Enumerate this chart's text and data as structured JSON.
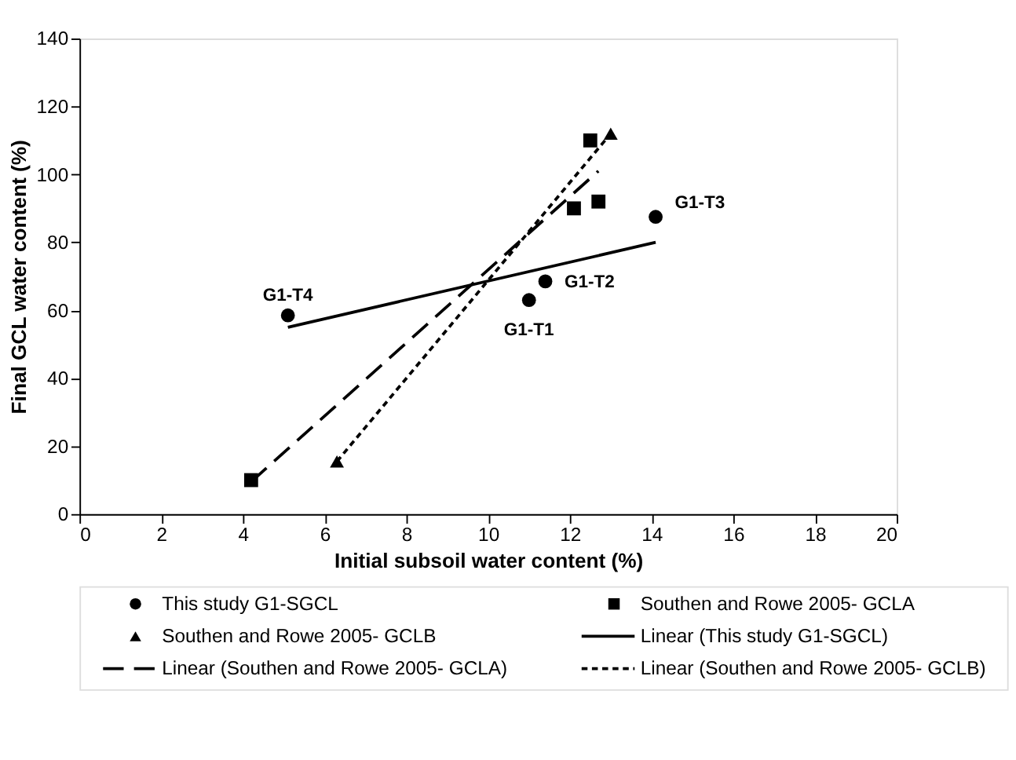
{
  "chart_data": {
    "type": "scatter",
    "xlabel": "Initial subsoil water content (%)",
    "ylabel": "Final GCL water content (%)",
    "xlim": [
      0,
      20
    ],
    "xticks": [
      0,
      2,
      4,
      6,
      8,
      10,
      12,
      14,
      16,
      18,
      20
    ],
    "ylim": [
      0,
      140
    ],
    "yticks": [
      0,
      20,
      40,
      60,
      80,
      100,
      120,
      140
    ],
    "grid": false,
    "legend": "bottom",
    "series": [
      {
        "name": "This study G1-SGCL",
        "marker": "circle",
        "color": "#000000",
        "x": [
          5.1,
          11.0,
          11.4,
          14.1
        ],
        "values": [
          58.5,
          63,
          68.5,
          87.5
        ]
      },
      {
        "name": "Southen and Rowe 2005- GCLA",
        "marker": "square",
        "color": "#000000",
        "x": [
          4.2,
          12.1,
          12.5,
          12.7
        ],
        "values": [
          10,
          90,
          110,
          92
        ]
      },
      {
        "name": "Southen and Rowe 2005- GCLB",
        "marker": "triangle",
        "color": "#000000",
        "x": [
          6.3,
          13.0
        ],
        "values": [
          15.5,
          112
        ]
      },
      {
        "name": "Linear (This study G1-SGCL)",
        "type": "line",
        "line_style": "solid",
        "color": "#000000",
        "x": [
          5.1,
          14.1
        ],
        "values": [
          55,
          80
        ]
      },
      {
        "name": "Linear (Southen and Rowe 2005- GCLA)",
        "type": "line",
        "line_style": "dashed",
        "color": "#000000",
        "x": [
          4.2,
          12.7
        ],
        "values": [
          9.5,
          101
        ]
      },
      {
        "name": "Linear (Southen and Rowe 2005- GCLB)",
        "type": "line",
        "line_style": "dotted",
        "color": "#000000",
        "x": [
          6.3,
          13.0
        ],
        "values": [
          15.5,
          112
        ]
      }
    ],
    "annotations": [
      {
        "text": "G1-T1",
        "x": 11.0,
        "y": 63
      },
      {
        "text": "G1-T2",
        "x": 11.4,
        "y": 68.5
      },
      {
        "text": "G1-T3",
        "x": 14.1,
        "y": 87.5
      },
      {
        "text": "G1-T4",
        "x": 5.1,
        "y": 58.5
      }
    ]
  }
}
